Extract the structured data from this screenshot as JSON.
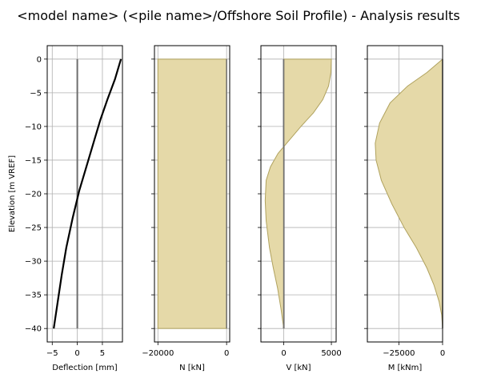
{
  "figure_title": "<model name> (<pile name>/Offshore Soil Profile) - Analysis results",
  "shared_ylabel": "Elevation [m VREF]",
  "colors": {
    "fill": "#e5d9a8",
    "fill_edge": "#b0a25e",
    "grid": "#b0b0b0",
    "pile_line": "#6e6e6e",
    "curve": "#000000"
  },
  "chart_data": [
    {
      "type": "line",
      "xlabel": "Deflection [mm]",
      "ylabel": "Elevation [m VREF]",
      "xlim": [
        -6,
        9
      ],
      "ylim": [
        -42,
        2
      ],
      "xticks": [
        -5,
        0,
        5
      ],
      "xtick_labels": [
        "−5",
        "0",
        "5"
      ],
      "yticks": [
        0,
        -5,
        -10,
        -15,
        -20,
        -25,
        -30,
        -35,
        -40
      ],
      "ytick_labels": [
        "0",
        "−5",
        "−10",
        "−15",
        "−20",
        "−25",
        "−30",
        "−35",
        "−40"
      ],
      "grid": true,
      "series": [
        {
          "role": "pile-axis",
          "x": [
            0,
            0
          ],
          "y": [
            0,
            -40
          ]
        },
        {
          "role": "deflection",
          "filled": false,
          "x": [
            8.7,
            7.5,
            6.0,
            4.6,
            3.4,
            2.0,
            0.4,
            -0.9,
            -2.2,
            -3.1,
            -3.9,
            -4.7
          ],
          "y": [
            0,
            -3,
            -6,
            -9,
            -12,
            -15.5,
            -19.5,
            -23.5,
            -28,
            -32,
            -36,
            -40
          ]
        }
      ]
    },
    {
      "type": "area",
      "xlabel": "N [kN]",
      "xlim": [
        -21000,
        900
      ],
      "ylim": [
        -42,
        2
      ],
      "xticks": [
        -20000,
        0
      ],
      "xtick_labels": [
        "−20000",
        "0"
      ],
      "yticks": [
        0,
        -5,
        -10,
        -15,
        -20,
        -25,
        -30,
        -35,
        -40
      ],
      "grid": true,
      "series": [
        {
          "role": "axial-force",
          "filled": true,
          "x": [
            -20000,
            -20000
          ],
          "y": [
            0,
            -40
          ]
        }
      ]
    },
    {
      "type": "area",
      "xlabel": "V [kN]",
      "xlim": [
        -2400,
        5500
      ],
      "ylim": [
        -42,
        2
      ],
      "xticks": [
        0,
        5000
      ],
      "xtick_labels": [
        "0",
        "5000"
      ],
      "yticks": [
        0,
        -5,
        -10,
        -15,
        -20,
        -25,
        -30,
        -35,
        -40
      ],
      "grid": true,
      "series": [
        {
          "role": "pile-axis",
          "x": [
            0,
            0
          ],
          "y": [
            0,
            -40
          ]
        },
        {
          "role": "shear-force",
          "filled": true,
          "x": [
            5000,
            4950,
            4700,
            4100,
            3100,
            1800,
            300,
            -600,
            -1400,
            -1850,
            -1950,
            -1850,
            -1500,
            -1100,
            -650,
            -300,
            0
          ],
          "y": [
            0,
            -2,
            -4,
            -6,
            -8,
            -10,
            -12.5,
            -14,
            -16,
            -18,
            -21,
            -24,
            -28,
            -31,
            -34,
            -37,
            -40
          ]
        }
      ]
    },
    {
      "type": "area",
      "xlabel": "M [kNm]",
      "xlim": [
        -43000,
        0
      ],
      "ylim": [
        -42,
        2
      ],
      "xticks": [
        -25000,
        0
      ],
      "xtick_labels": [
        "−25000",
        "0"
      ],
      "yticks": [
        0,
        -5,
        -10,
        -15,
        -20,
        -25,
        -30,
        -35,
        -40
      ],
      "grid": true,
      "series": [
        {
          "role": "bending-moment",
          "filled": true,
          "x": [
            0,
            -9000,
            -20000,
            -30000,
            -36000,
            -38500,
            -38000,
            -35000,
            -29000,
            -22000,
            -15000,
            -9000,
            -5000,
            -2000,
            -500,
            0
          ],
          "y": [
            0,
            -2,
            -4,
            -6.5,
            -9.5,
            -12.5,
            -15,
            -18,
            -21.5,
            -25,
            -28,
            -31,
            -33.5,
            -36,
            -38,
            -40
          ]
        }
      ]
    }
  ]
}
